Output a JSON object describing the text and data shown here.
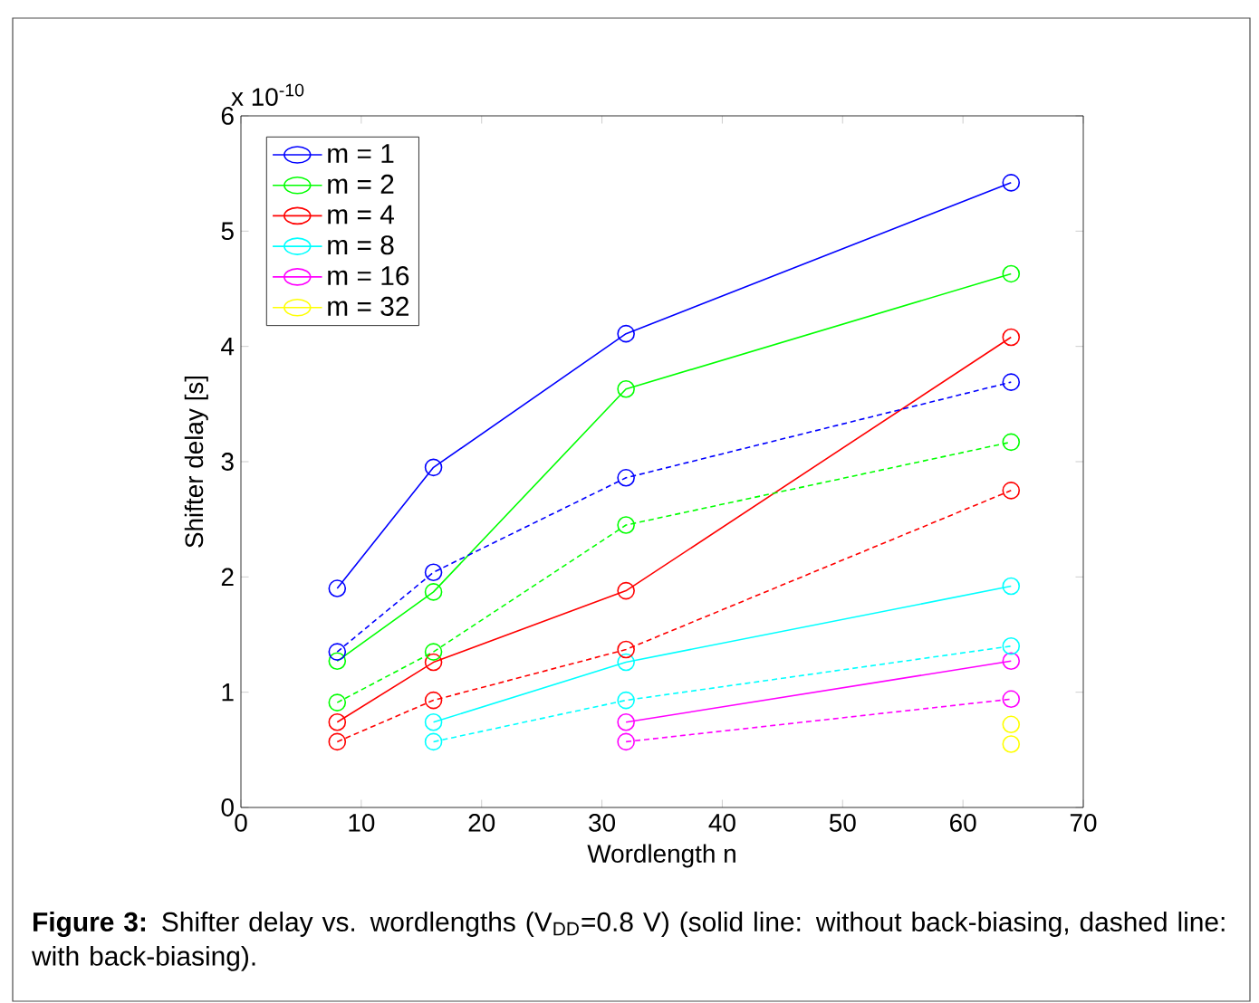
{
  "chart_data": {
    "type": "line",
    "xlabel": "Wordlength n",
    "ylabel": "Shifter delay [s]",
    "xlim": [
      0,
      70
    ],
    "xticks": [
      0,
      10,
      20,
      30,
      40,
      50,
      60,
      70
    ],
    "ylim": [
      0,
      6
    ],
    "yticks": [
      0,
      1,
      2,
      3,
      4,
      5,
      6
    ],
    "legend": "top left",
    "marker": "circle",
    "annotations": [
      "x 10$^{-10}$",
      "**Figure 3:** Shifter delay vs. wordlengths (V$_{DD}$=0.8 V) (solid line: without back-biasing, dashed line: with back-biasing)."
    ],
    "series": [
      {
        "name": "m = 1",
        "color": "#0000ff",
        "line_style": "solid",
        "x": [
          8,
          16,
          32,
          64
        ],
        "values": [
          1.9,
          2.95,
          4.11,
          5.42
        ]
      },
      {
        "name": "m = 2",
        "color": "#00ff00",
        "line_style": "solid",
        "x": [
          8,
          16,
          32,
          64
        ],
        "values": [
          1.27,
          1.87,
          3.63,
          4.63
        ]
      },
      {
        "name": "m = 4",
        "color": "#ff0000",
        "line_style": "solid",
        "x": [
          8,
          16,
          32,
          64
        ],
        "values": [
          0.74,
          1.26,
          1.88,
          4.08
        ]
      },
      {
        "name": "m = 8",
        "color": "#00ffff",
        "line_style": "solid",
        "x": [
          16,
          32,
          64
        ],
        "values": [
          0.74,
          1.26,
          1.92
        ]
      },
      {
        "name": "m = 16",
        "color": "#ff00ff",
        "line_style": "solid",
        "x": [
          32,
          64
        ],
        "values": [
          0.74,
          1.27
        ]
      },
      {
        "name": "m = 32",
        "color": "#ffff00",
        "line_style": "solid",
        "x": [
          64
        ],
        "values": [
          0.72
        ]
      },
      {
        "color": "#0000ff",
        "line_style": "dashed",
        "x": [
          8,
          16,
          32,
          64
        ],
        "values": [
          1.35,
          2.04,
          2.86,
          3.69
        ]
      },
      {
        "color": "#00ff00",
        "line_style": "dashed",
        "x": [
          8,
          16,
          32,
          64
        ],
        "values": [
          0.91,
          1.35,
          2.45,
          3.17
        ]
      },
      {
        "color": "#ff0000",
        "line_style": "dashed",
        "x": [
          8,
          16,
          32,
          64
        ],
        "values": [
          0.57,
          0.93,
          1.37,
          2.75
        ]
      },
      {
        "color": "#00ffff",
        "line_style": "dashed",
        "x": [
          16,
          32,
          64
        ],
        "values": [
          0.57,
          0.93,
          1.4
        ]
      },
      {
        "color": "#ff00ff",
        "line_style": "dashed",
        "x": [
          32,
          64
        ],
        "values": [
          0.57,
          0.94
        ]
      },
      {
        "color": "#ffff00",
        "line_style": "dashed",
        "x": [
          64
        ],
        "values": [
          0.55
        ]
      }
    ]
  }
}
